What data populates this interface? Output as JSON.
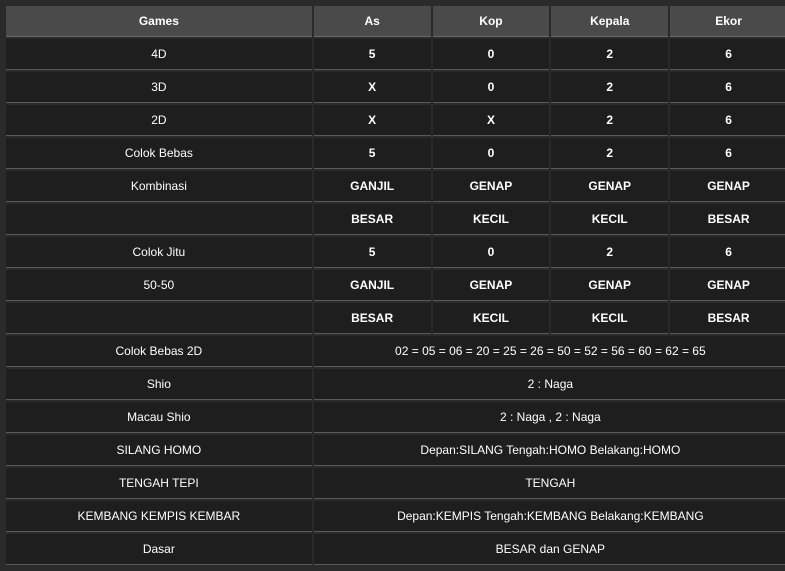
{
  "header": {
    "games": "Games",
    "as": "As",
    "kop": "Kop",
    "kepala": "Kepala",
    "ekor": "Ekor"
  },
  "rows": {
    "r4d": {
      "label": "4D",
      "as": "5",
      "kop": "0",
      "kepala": "2",
      "ekor": "6"
    },
    "r3d": {
      "label": "3D",
      "as": "X",
      "kop": "0",
      "kepala": "2",
      "ekor": "6"
    },
    "r2d": {
      "label": "2D",
      "as": "X",
      "kop": "X",
      "kepala": "2",
      "ekor": "6"
    },
    "colokbebas": {
      "label": "Colok Bebas",
      "as": "5",
      "kop": "0",
      "kepala": "2",
      "ekor": "6"
    },
    "kombinasi1": {
      "label": "Kombinasi",
      "as": "GANJIL",
      "kop": "GENAP",
      "kepala": "GENAP",
      "ekor": "GENAP"
    },
    "kombinasi2": {
      "label": "",
      "as": "BESAR",
      "kop": "KECIL",
      "kepala": "KECIL",
      "ekor": "BESAR"
    },
    "colokjitu": {
      "label": "Colok Jitu",
      "as": "5",
      "kop": "0",
      "kepala": "2",
      "ekor": "6"
    },
    "r5050a": {
      "label": "50-50",
      "as": "GANJIL",
      "kop": "GENAP",
      "kepala": "GENAP",
      "ekor": "GENAP"
    },
    "r5050b": {
      "label": "",
      "as": "BESAR",
      "kop": "KECIL",
      "kepala": "KECIL",
      "ekor": "BESAR"
    },
    "colokbebas2d": {
      "label": "Colok Bebas 2D",
      "value": "02 = 05 = 06 = 20 = 25 = 26 = 50 = 52 = 56 = 60 = 62 = 65"
    },
    "shio": {
      "label": "Shio",
      "value": "2 : Naga"
    },
    "macaushio": {
      "label": "Macau Shio",
      "value": "2 : Naga , 2 : Naga"
    },
    "silanghomo": {
      "label": "SILANG HOMO",
      "value": "Depan:SILANG Tengah:HOMO Belakang:HOMO"
    },
    "tengahtepi": {
      "label": "TENGAH TEPI",
      "value": "TENGAH"
    },
    "kembang": {
      "label": "KEMBANG KEMPIS KEMBAR",
      "value": "Depan:KEMPIS Tengah:KEMBANG Belakang:KEMBANG"
    },
    "dasar": {
      "label": "Dasar",
      "value": "BESAR dan GENAP"
    }
  }
}
